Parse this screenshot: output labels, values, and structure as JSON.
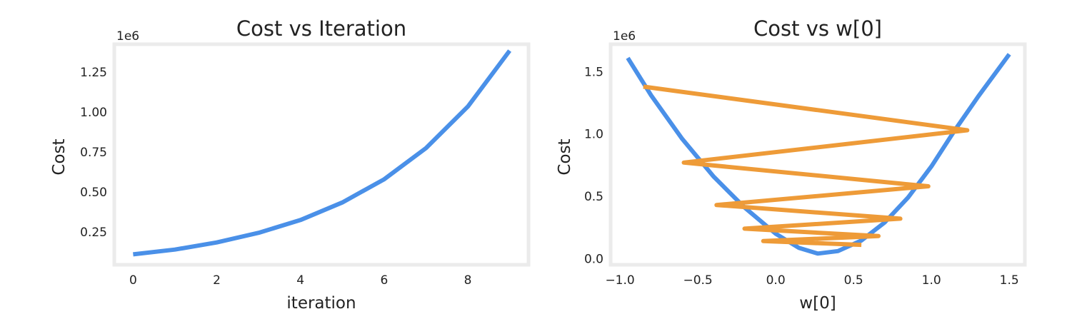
{
  "chart_data": [
    {
      "type": "line",
      "title": "Cost vs Iteration",
      "xlabel": "iteration",
      "ylabel": "Cost",
      "y_offset_label": "1e6",
      "xlim": [
        -0.45,
        9.45
      ],
      "ylim": [
        0.045,
        1.425
      ],
      "x_ticks": [
        0,
        2,
        4,
        6,
        8
      ],
      "x_tick_labels": [
        "0",
        "2",
        "4",
        "6",
        "8"
      ],
      "y_ticks": [
        0.25,
        0.5,
        0.75,
        1.0,
        1.25
      ],
      "y_tick_labels": [
        "0.25",
        "0.50",
        "0.75",
        "1.00",
        "1.25"
      ],
      "grid": false,
      "series": [
        {
          "color": "#4a90e8",
          "x": [
            0,
            1,
            2,
            3,
            4,
            5,
            6,
            7,
            8,
            9
          ],
          "y": [
            0.11,
            0.14,
            0.185,
            0.245,
            0.325,
            0.435,
            0.58,
            0.775,
            1.035,
            1.385
          ]
        }
      ]
    },
    {
      "type": "line",
      "title": "Cost vs w[0]",
      "xlabel": "w[0]",
      "ylabel": "Cost",
      "y_offset_label": "1e6",
      "xlim": [
        -1.06,
        1.6
      ],
      "ylim": [
        -0.05,
        1.72
      ],
      "x_ticks": [
        -1.0,
        -0.5,
        0.0,
        0.5,
        1.0,
        1.5
      ],
      "x_tick_labels": [
        "−1.0",
        "−0.5",
        "0.0",
        "0.5",
        "1.0",
        "1.5"
      ],
      "y_ticks": [
        0.0,
        0.5,
        1.0,
        1.5
      ],
      "y_tick_labels": [
        "0.0",
        "0.5",
        "1.0",
        "1.5"
      ],
      "grid": false,
      "series": [
        {
          "color": "#4a90e8",
          "curve": "parabola",
          "x": [
            -0.95,
            -0.8,
            -0.6,
            -0.4,
            -0.2,
            0.0,
            0.15,
            0.27,
            0.4,
            0.55,
            0.7,
            0.85,
            1.0,
            1.15,
            1.3,
            1.5
          ],
          "y": [
            1.61,
            1.31,
            0.96,
            0.66,
            0.41,
            0.2,
            0.085,
            0.04,
            0.06,
            0.145,
            0.29,
            0.49,
            0.74,
            1.03,
            1.3,
            1.64
          ]
        },
        {
          "color": "#ee9b38",
          "curve": "gradient-descent-path",
          "x": [
            -0.85,
            1.23,
            -0.59,
            0.98,
            -0.38,
            0.8,
            -0.2,
            0.66,
            -0.08,
            0.55
          ],
          "y": [
            1.38,
            1.03,
            0.77,
            0.58,
            0.43,
            0.32,
            0.24,
            0.18,
            0.14,
            0.11
          ]
        }
      ]
    }
  ]
}
